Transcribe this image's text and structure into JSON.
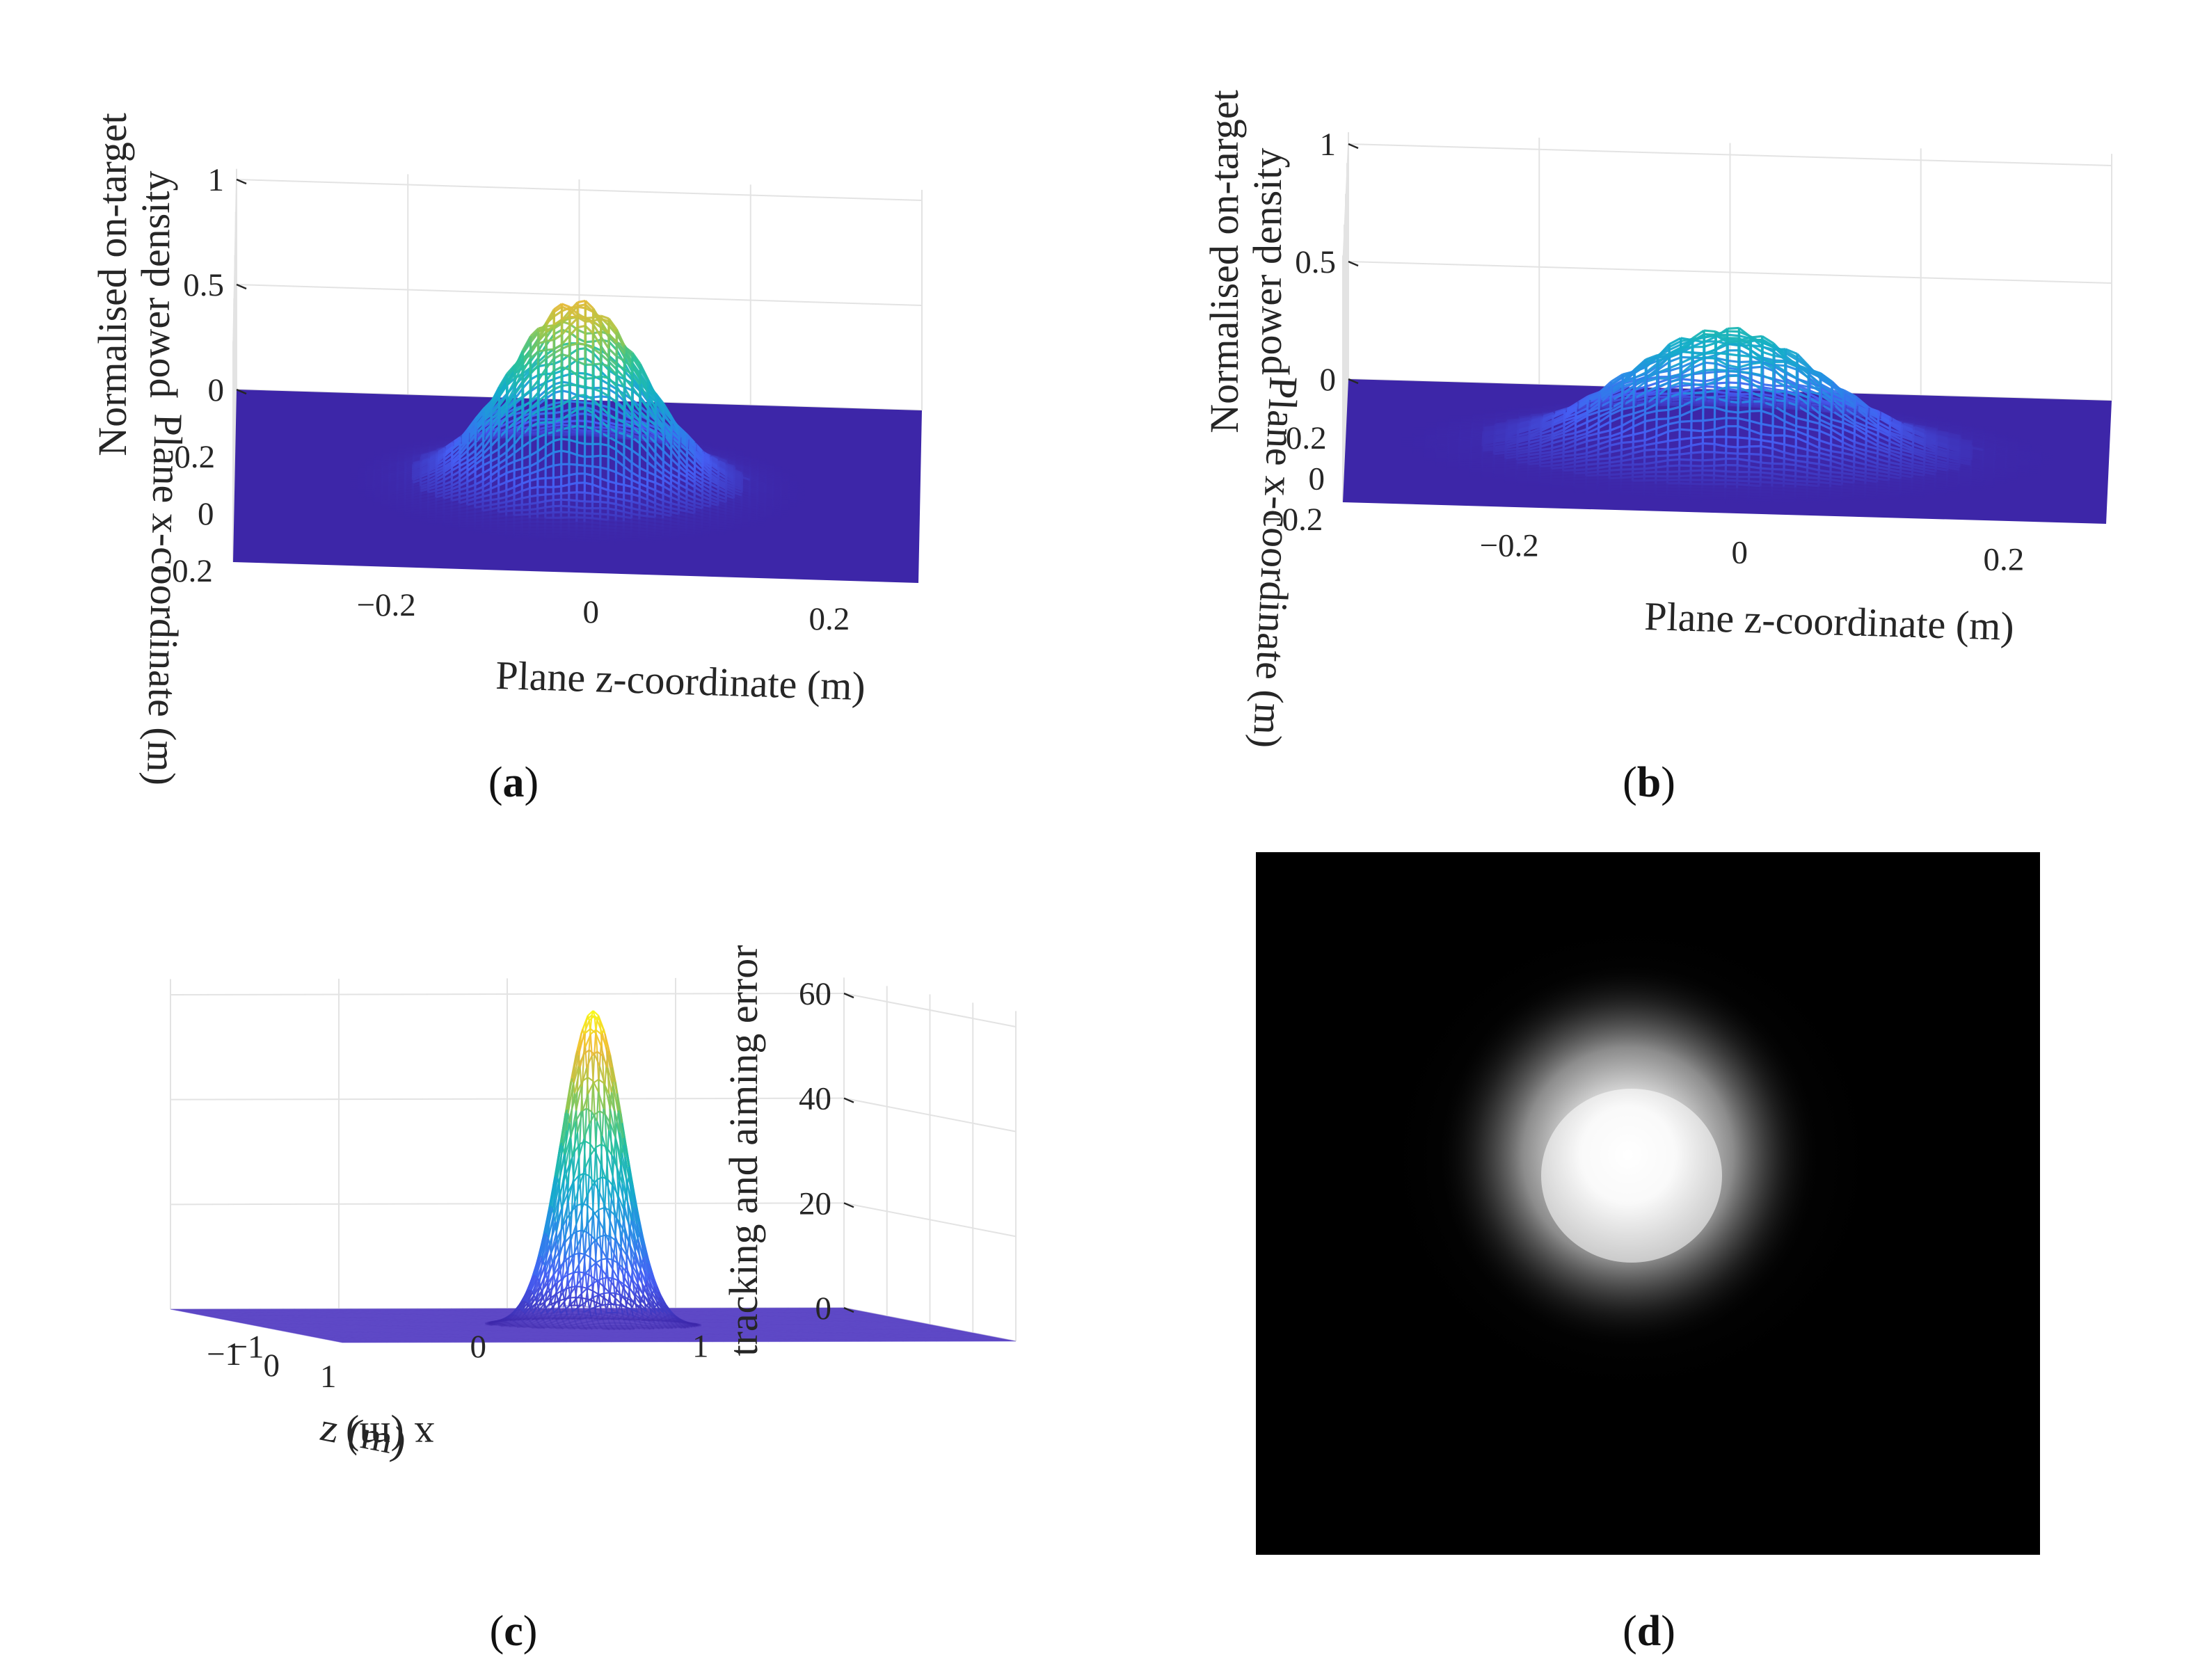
{
  "figure": {
    "captions": [
      "a",
      "b",
      "c",
      "d"
    ]
  },
  "chart_data": [
    {
      "id": "a",
      "type": "surface3d",
      "title": "",
      "zlabel": "Normalised on-target power density",
      "xlabel": "Plane x-coordinate (m)",
      "ylabel": "Plane z-coordinate (m)",
      "zticks": [
        "0",
        "0.5",
        "1"
      ],
      "xticks": [
        "0.2",
        "0",
        "−0.2"
      ],
      "yticks": [
        "−0.2",
        "0",
        "0.2"
      ],
      "zlim": [
        0,
        1
      ],
      "xlim": [
        -0.3,
        0.3
      ],
      "ylim": [
        -0.3,
        0.3
      ],
      "peak": 0.85,
      "spread_m": 0.06,
      "colormap": "parula"
    },
    {
      "id": "b",
      "type": "surface3d",
      "title": "",
      "zlabel": "Normalised on-target power density",
      "xlabel": "Plane x-coordinate (m)",
      "ylabel": "Plane z-coordinate (m)",
      "zticks": [
        "0",
        "0.5",
        "1"
      ],
      "xticks": [
        "0.2",
        "0",
        "−0.2"
      ],
      "yticks": [
        "−0.2",
        "0",
        "0.2"
      ],
      "zlim": [
        0,
        1
      ],
      "xlim": [
        -0.3,
        0.3
      ],
      "ylim": [
        -0.3,
        0.3
      ],
      "peak": 0.5,
      "spread_m": 0.08,
      "colormap": "parula"
    },
    {
      "id": "c",
      "type": "mesh3d",
      "title": "",
      "zlabel": "tracking and aiming error",
      "xlabel": "x (m)",
      "ylabel": "z (m)",
      "zticks": [
        "0",
        "20",
        "40",
        "60"
      ],
      "xticks": [
        "1",
        "0",
        "−1"
      ],
      "yticks": [
        "−1",
        "0",
        "1"
      ],
      "zlim": [
        0,
        60
      ],
      "xlim": [
        -1,
        1
      ],
      "ylim": [
        -1,
        1
      ],
      "peak": 60,
      "spread_m": 0.09,
      "colormap": "parula"
    },
    {
      "id": "d",
      "type": "heatmap",
      "title": "",
      "description_value": "grayscale intensity image of focal spot",
      "peak": 1.0
    }
  ],
  "colors": {
    "floor": "#3d26a8",
    "image_bg": "#000000"
  }
}
